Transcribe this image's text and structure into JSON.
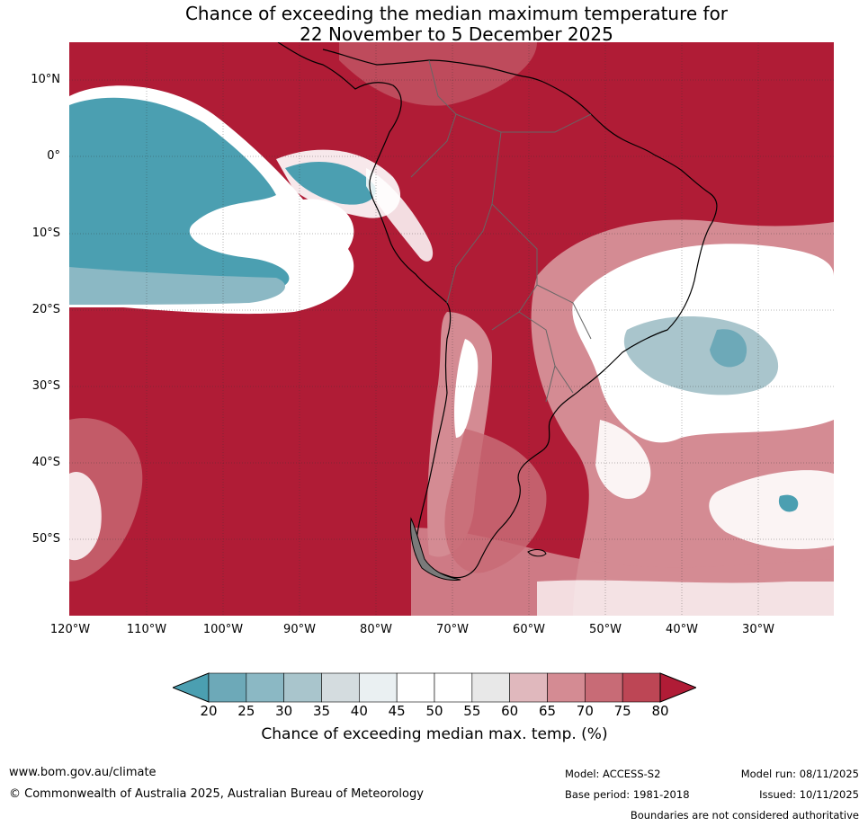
{
  "title": {
    "line1": "Chance of exceeding the median maximum temperature for",
    "line2": "22 November to 5 December 2025"
  },
  "map": {
    "lat_labels": [
      "10°N",
      "0°",
      "10°S",
      "20°S",
      "30°S",
      "40°S",
      "50°S"
    ],
    "lon_labels": [
      "120°W",
      "110°W",
      "100°W",
      "90°W",
      "80°W",
      "70°W",
      "60°W",
      "50°W",
      "40°W",
      "30°W"
    ]
  },
  "legend": {
    "ticks": [
      "20",
      "25",
      "30",
      "35",
      "40",
      "45",
      "50",
      "55",
      "60",
      "65",
      "70",
      "75",
      "80"
    ],
    "colors": [
      "#4b9fb1",
      "#6da9b8",
      "#8bb8c4",
      "#a9c5cc",
      "#d4dcdf",
      "#eaf0f2",
      "#ffffff",
      "#ffffff",
      "#e8e8e8",
      "#e0b8bd",
      "#d48b93",
      "#c86b76",
      "#bd4655",
      "#b01c36"
    ],
    "label": "Chance of exceeding median max. temp. (%)"
  },
  "footer": {
    "website": "www.bom.gov.au/climate",
    "copyright": "© Commonwealth of Australia 2025, Australian Bureau of Meteorology",
    "model": "Model: ACCESS-S2",
    "base_period": "Base period: 1981-2018",
    "model_run": "Model run: 08/11/2025",
    "issued": "Issued: 10/11/2025",
    "disclaimer": "Boundaries are not considered authoritative"
  }
}
